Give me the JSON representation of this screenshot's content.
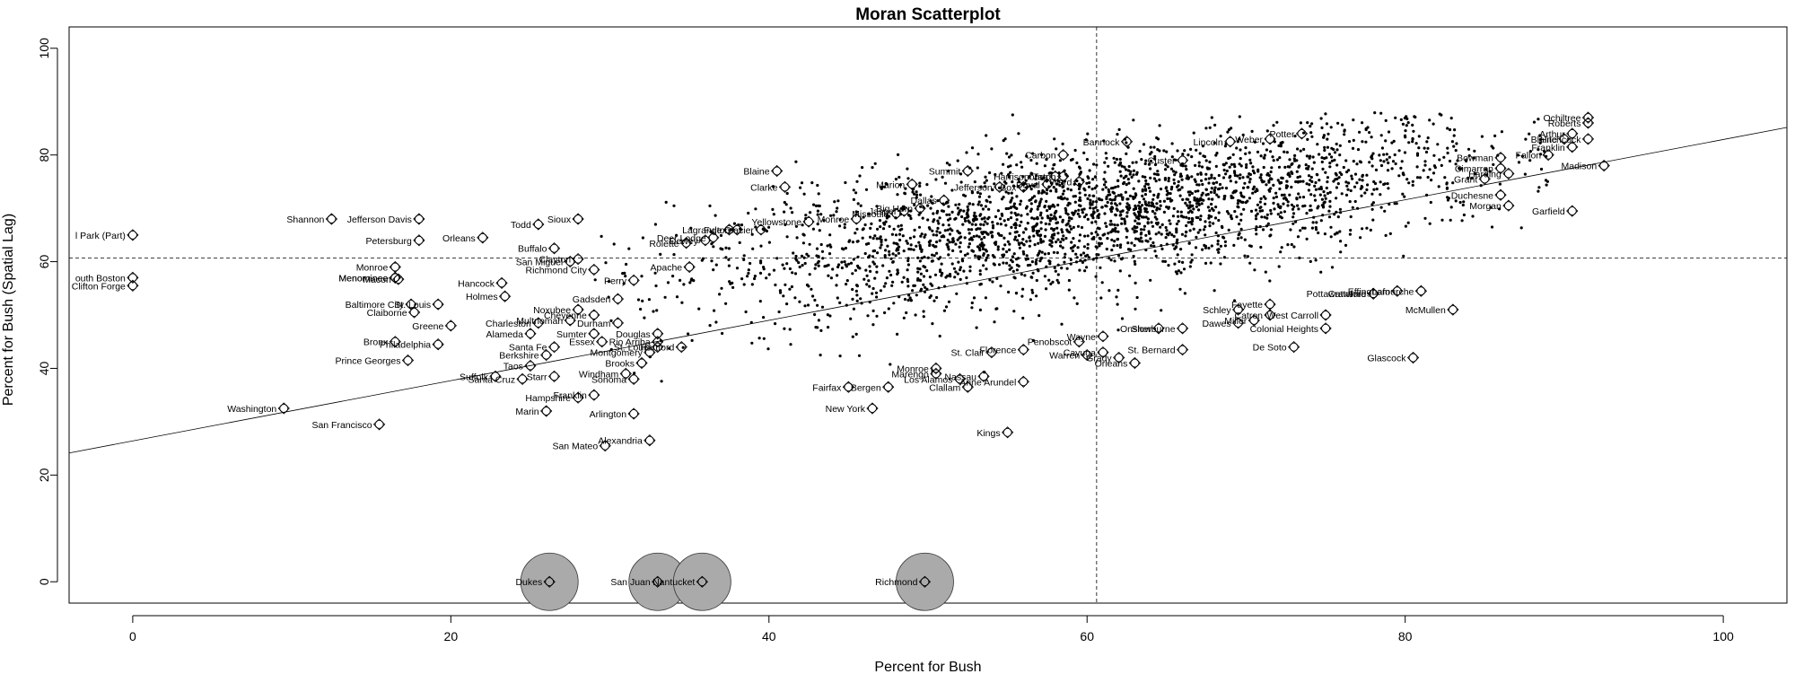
{
  "chart_data": {
    "type": "scatter",
    "title": "Moran Scatterplot",
    "xlabel": "Percent for Bush",
    "ylabel": "Percent for Bush (Spatial Lag)",
    "xlim": [
      -4,
      104
    ],
    "ylim": [
      -4,
      104
    ],
    "xticks": [
      0,
      20,
      40,
      60,
      80,
      100
    ],
    "yticks": [
      0,
      20,
      40,
      60,
      80,
      100
    ],
    "mean_x": 60.6,
    "mean_y": 60.7,
    "regression": {
      "intercept": 26.4,
      "slope": 0.565
    },
    "grid": false,
    "legend": "none",
    "cloud": {
      "description_free": true,
      "count": 2700,
      "x_mean": 61,
      "x_sd": 13,
      "x_range": [
        29,
        89
      ],
      "residual_sd": 6.5,
      "y_range": [
        34,
        88
      ]
    },
    "influential_points": [
      {
        "name": "District of Columbia / Carroll Park (Part)",
        "label": "l Park (Part)",
        "x": 0,
        "y": 65
      },
      {
        "name": "South Boston",
        "label": "outh Boston",
        "x": 0,
        "y": 57
      },
      {
        "name": "Clifton Forge",
        "label": "Clifton Forge",
        "x": 0,
        "y": 55.5
      },
      {
        "name": "Washington",
        "label": "Washington",
        "x": 9.5,
        "y": 32.5
      },
      {
        "name": "Shannon",
        "label": "Shannon",
        "x": 12.5,
        "y": 68
      },
      {
        "name": "San Francisco",
        "label": "San Francisco",
        "x": 15.5,
        "y": 29.5
      },
      {
        "name": "Monroe",
        "label": "Monroe",
        "x": 16.5,
        "y": 59
      },
      {
        "name": "Menominee",
        "label": "Menominee",
        "x": 16.5,
        "y": 57
      },
      {
        "name": "Macon",
        "label": "Macon",
        "x": 16.7,
        "y": 56.7
      },
      {
        "name": "Bronx",
        "label": "Bronx",
        "x": 16.5,
        "y": 45
      },
      {
        "name": "Prince Georges",
        "label": "Prince Georges",
        "x": 17.3,
        "y": 41.5
      },
      {
        "name": "Baltimore City",
        "label": "Baltimore City",
        "x": 17.5,
        "y": 52
      },
      {
        "name": "Claiborne",
        "label": "Claiborne",
        "x": 17.7,
        "y": 50.5
      },
      {
        "name": "Jefferson Davis",
        "label": "Jefferson Davis",
        "x": 18,
        "y": 68
      },
      {
        "name": "Petersburg",
        "label": "Petersburg",
        "x": 18,
        "y": 64
      },
      {
        "name": "Greene",
        "label": "Greene",
        "x": 20,
        "y": 48
      },
      {
        "name": "St. Louis",
        "label": "St. Louis",
        "x": 19.2,
        "y": 52
      },
      {
        "name": "Philadelphia",
        "label": "Philadelphia",
        "x": 19.2,
        "y": 44.5
      },
      {
        "name": "Orleans",
        "label": "Orleans",
        "x": 22,
        "y": 64.5
      },
      {
        "name": "Suffolk",
        "label": "Suffolk",
        "x": 22.8,
        "y": 38.5
      },
      {
        "name": "Hancock",
        "label": "Hancock",
        "x": 23.2,
        "y": 56
      },
      {
        "name": "Holmes",
        "label": "Holmes",
        "x": 23.4,
        "y": 53.5
      },
      {
        "name": "Santa Cruz",
        "label": "Santa Cruz",
        "x": 24.5,
        "y": 38
      },
      {
        "name": "Taos",
        "label": "Taos",
        "x": 25,
        "y": 40.5
      },
      {
        "name": "Alameda",
        "label": "Alameda",
        "x": 25,
        "y": 46.5
      },
      {
        "name": "Charleston",
        "label": "Charleston",
        "x": 25.5,
        "y": 48.5
      },
      {
        "name": "Buffalo",
        "label": "Buffalo",
        "x": 26.5,
        "y": 62.5
      },
      {
        "name": "Santa Fe",
        "label": "Santa Fe",
        "x": 26.5,
        "y": 44
      },
      {
        "name": "Todd",
        "label": "Todd",
        "x": 25.5,
        "y": 67
      },
      {
        "name": "Berkshire",
        "label": "Berkshire",
        "x": 26,
        "y": 42.5
      },
      {
        "name": "Marin",
        "label": "Marin",
        "x": 26,
        "y": 32
      },
      {
        "name": "Starr",
        "label": "Starr",
        "x": 26.5,
        "y": 38.5
      },
      {
        "name": "Sioux",
        "label": "Sioux",
        "x": 28,
        "y": 68
      },
      {
        "name": "Clayton",
        "label": "Clayton",
        "x": 28,
        "y": 60.5
      },
      {
        "name": "San Miguel",
        "label": "San Miguel",
        "x": 27.5,
        "y": 60
      },
      {
        "name": "Richmond City",
        "label": "Richmond City",
        "x": 29,
        "y": 58.5
      },
      {
        "name": "Hampshire",
        "label": "Hampshire",
        "x": 28,
        "y": 34.5
      },
      {
        "name": "Franklin",
        "label": "Franklin",
        "x": 29,
        "y": 35
      },
      {
        "name": "Perry",
        "label": "Perry",
        "x": 31.5,
        "y": 56.5
      },
      {
        "name": "Arlington",
        "label": "Arlington",
        "x": 31.5,
        "y": 31.5
      },
      {
        "name": "San Mateo",
        "label": "San Mateo",
        "x": 29.7,
        "y": 25.5
      },
      {
        "name": "Alexandria",
        "label": "Alexandria",
        "x": 32.5,
        "y": 26.5
      },
      {
        "name": "Windham",
        "label": "Windham",
        "x": 31,
        "y": 39
      },
      {
        "name": "Sonoma",
        "label": "Sonoma",
        "x": 31.5,
        "y": 38
      },
      {
        "name": "Brooks",
        "label": "Brooks",
        "x": 32,
        "y": 41
      },
      {
        "name": "Apache",
        "label": "Apache",
        "x": 35,
        "y": 59
      },
      {
        "name": "Rolette",
        "label": "Rolette",
        "x": 34.8,
        "y": 63.5
      },
      {
        "name": "Blaine",
        "label": "Blaine",
        "x": 40.5,
        "y": 77
      },
      {
        "name": "Clarke",
        "label": "Clarke",
        "x": 41,
        "y": 74
      },
      {
        "name": "Glacier",
        "label": "Glacier",
        "x": 39.5,
        "y": 66
      },
      {
        "name": "Fulton",
        "label": "Fulton",
        "x": 38,
        "y": 66
      },
      {
        "name": "Marion",
        "label": "Marion",
        "x": 49,
        "y": 74.5
      },
      {
        "name": "Summit",
        "label": "Summit",
        "x": 52.5,
        "y": 77
      },
      {
        "name": "Dallas",
        "label": "Dallas",
        "x": 51,
        "y": 71.5
      },
      {
        "name": "Jefferson",
        "label": "Jefferson",
        "x": 54.5,
        "y": 74
      },
      {
        "name": "Carbon",
        "label": "Carbon",
        "x": 58.5,
        "y": 80
      },
      {
        "name": "Bannock",
        "label": "Bannock",
        "x": 62.5,
        "y": 82.5
      },
      {
        "name": "Custer",
        "label": "Custer",
        "x": 66,
        "y": 79
      },
      {
        "name": "Lincoln",
        "label": "Lincoln",
        "x": 69,
        "y": 82.5
      },
      {
        "name": "Weber",
        "label": "Weber",
        "x": 71.5,
        "y": 83
      },
      {
        "name": "Potter",
        "label": "Potter",
        "x": 73.5,
        "y": 84
      },
      {
        "name": "Fairfax",
        "label": "Fairfax",
        "x": 45,
        "y": 36.5
      },
      {
        "name": "Bergen",
        "label": "Bergen",
        "x": 47.5,
        "y": 36.5
      },
      {
        "name": "New York",
        "label": "New York",
        "x": 46.5,
        "y": 32.5
      },
      {
        "name": "Monroe",
        "label": "Monroe",
        "x": 50.5,
        "y": 40
      },
      {
        "name": "Clallam",
        "label": "Clallam",
        "x": 52.5,
        "y": 36.5
      },
      {
        "name": "Nassau",
        "label": "Nassau",
        "x": 53.5,
        "y": 38.5
      },
      {
        "name": "Anne Arundel",
        "label": "Anne Arundel",
        "x": 56,
        "y": 37.5
      },
      {
        "name": "Kings",
        "label": "Kings",
        "x": 55,
        "y": 28
      },
      {
        "name": "Glascock",
        "label": "Glascock",
        "x": 80.5,
        "y": 42
      },
      {
        "name": "De Soto",
        "label": "De Soto",
        "x": 73,
        "y": 44
      },
      {
        "name": "McMullen",
        "label": "McMullen",
        "x": 83,
        "y": 51
      },
      {
        "name": "Colonial Heights",
        "label": "Colonial Heights",
        "x": 75,
        "y": 47.5
      },
      {
        "name": "West Carroll",
        "label": "West Carroll",
        "x": 75,
        "y": 50
      },
      {
        "name": "Lafourche",
        "label": "Lafourche",
        "x": 81,
        "y": 54.5
      },
      {
        "name": "Orleans",
        "label": "Orleans",
        "x": 63,
        "y": 41
      },
      {
        "name": "St. Bernard",
        "label": "St. Bernard",
        "x": 66,
        "y": 43.5
      },
      {
        "name": "Grady",
        "label": "Grady",
        "x": 62,
        "y": 42
      },
      {
        "name": "Ochiltree",
        "label": "Ochiltree",
        "x": 91.5,
        "y": 87
      },
      {
        "name": "Roberts",
        "label": "Roberts",
        "x": 91.5,
        "y": 86
      },
      {
        "name": "Hitchcock",
        "label": "Hitchcock",
        "x": 91.5,
        "y": 83
      },
      {
        "name": "Madison",
        "label": "Madison",
        "x": 92.5,
        "y": 78
      },
      {
        "name": "Garfield",
        "label": "Garfield",
        "x": 90.5,
        "y": 69.5
      },
      {
        "name": "Franklin",
        "label": "Franklin",
        "x": 90.5,
        "y": 81.5
      }
    ],
    "extra_labels": [
      {
        "label": "Menominee",
        "x": 16.5,
        "y": 57
      },
      {
        "label": "Cheyenne",
        "x": 29,
        "y": 50
      },
      {
        "label": "Durham",
        "x": 30.5,
        "y": 48.5
      },
      {
        "label": "Noxubee",
        "x": 28,
        "y": 51
      },
      {
        "label": "Gadsden",
        "x": 30.5,
        "y": 53
      },
      {
        "label": "Sumter",
        "x": 29,
        "y": 46.5
      },
      {
        "label": "Essex",
        "x": 29.5,
        "y": 45
      },
      {
        "label": "Douglas",
        "x": 33,
        "y": 46.5
      },
      {
        "label": "St. Louis",
        "x": 33,
        "y": 44
      },
      {
        "label": "Hartford",
        "x": 34.5,
        "y": 44
      },
      {
        "label": "Rio Arriba",
        "x": 33,
        "y": 45
      },
      {
        "label": "Montgomery",
        "x": 32.5,
        "y": 43
      },
      {
        "label": "Multnomah",
        "x": 27.5,
        "y": 49
      },
      {
        "label": "Harrisonburg",
        "x": 58,
        "y": 76
      },
      {
        "label": "Teton",
        "x": 58.5,
        "y": 76
      },
      {
        "label": "Duval",
        "x": 57.5,
        "y": 74.5
      },
      {
        "label": "Box",
        "x": 56,
        "y": 74
      },
      {
        "label": "Ward",
        "x": 59.5,
        "y": 75
      },
      {
        "label": "Jasper",
        "x": 48.5,
        "y": 69.5
      },
      {
        "label": "Missoula",
        "x": 48,
        "y": 69
      },
      {
        "label": "Big Horn",
        "x": 49.5,
        "y": 70
      },
      {
        "label": "Monroe",
        "x": 45.5,
        "y": 68
      },
      {
        "label": "Lagrange",
        "x": 37.5,
        "y": 66
      },
      {
        "label": "Deer Lodge",
        "x": 36.5,
        "y": 64.5
      },
      {
        "label": "Dewey",
        "x": 36,
        "y": 64
      },
      {
        "label": "Yellowstone",
        "x": 42.5,
        "y": 67.5
      },
      {
        "label": "Fayette",
        "x": 71.5,
        "y": 52
      },
      {
        "label": "Schley",
        "x": 69.5,
        "y": 51
      },
      {
        "label": "Catron",
        "x": 71.5,
        "y": 50
      },
      {
        "label": "Miller",
        "x": 70.5,
        "y": 49
      },
      {
        "label": "Dawes",
        "x": 69.5,
        "y": 48.5
      },
      {
        "label": "Pottawattamie",
        "x": 78,
        "y": 54
      },
      {
        "label": "Effingham",
        "x": 79.5,
        "y": 54.5
      },
      {
        "label": "Crawford",
        "x": 78,
        "y": 54
      },
      {
        "label": "Onslow",
        "x": 64.5,
        "y": 47.5
      },
      {
        "label": "Sherburne",
        "x": 66,
        "y": 47.5
      },
      {
        "label": "Wayne",
        "x": 61,
        "y": 46
      },
      {
        "label": "Penobscot",
        "x": 59.5,
        "y": 45
      },
      {
        "label": "Cayuga",
        "x": 61,
        "y": 43
      },
      {
        "label": "Warren",
        "x": 60,
        "y": 42.5
      },
      {
        "label": "Florence",
        "x": 56,
        "y": 43.5
      },
      {
        "label": "St. Clair",
        "x": 54,
        "y": 43
      },
      {
        "label": "Marengo",
        "x": 50.5,
        "y": 39
      },
      {
        "label": "Los Alamos",
        "x": 52,
        "y": 38
      },
      {
        "label": "Bowman",
        "x": 86,
        "y": 79.5
      },
      {
        "label": "Cimarron",
        "x": 86,
        "y": 77.5
      },
      {
        "label": "Harding",
        "x": 86.5,
        "y": 76.5
      },
      {
        "label": "Grant",
        "x": 85,
        "y": 75.5
      },
      {
        "label": "Duchesne",
        "x": 86,
        "y": 72.5
      },
      {
        "label": "Morgan",
        "x": 86.5,
        "y": 70.5
      },
      {
        "label": "Arthur",
        "x": 90.5,
        "y": 84
      },
      {
        "label": "Blaine",
        "x": 90,
        "y": 83
      },
      {
        "label": "Fallon",
        "x": 89,
        "y": 80
      }
    ],
    "size_points": [
      {
        "label": "Dukes",
        "x": 26.2,
        "y": 0,
        "radius": 18
      },
      {
        "label": "San Juan",
        "x": 33,
        "y": 0,
        "radius": 18
      },
      {
        "label": "Nantucket",
        "x": 35.8,
        "y": 0,
        "radius": 18
      },
      {
        "label": "Richmond",
        "x": 49.8,
        "y": 0,
        "radius": 18
      }
    ]
  }
}
